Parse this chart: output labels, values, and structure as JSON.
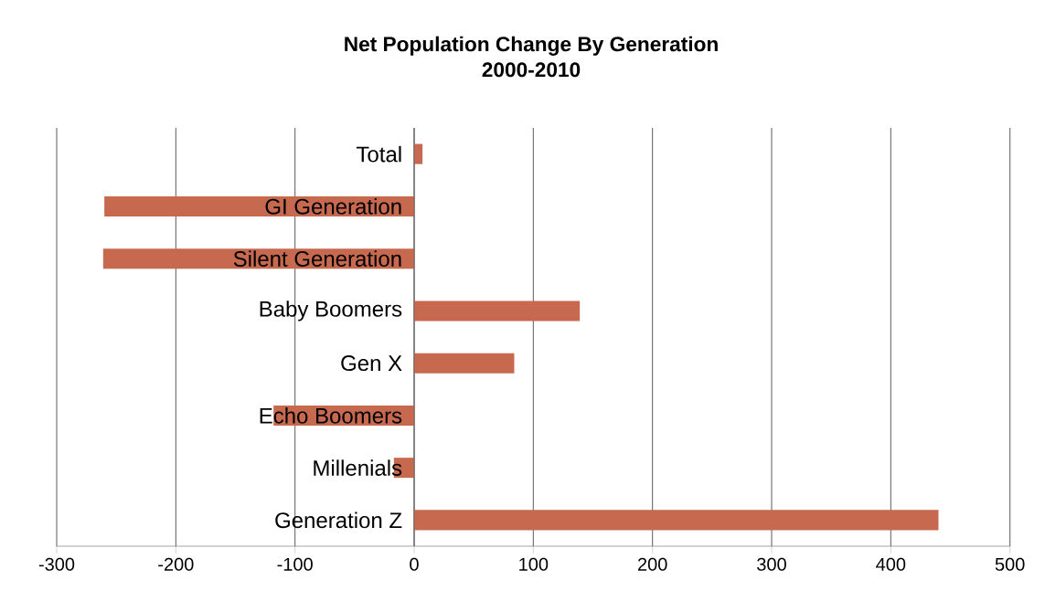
{
  "chart_data": {
    "type": "bar",
    "orientation": "horizontal",
    "title": "Net Population Change By Generation",
    "subtitle": "2000-2010",
    "categories": [
      "Total",
      "GI Generation",
      "Silent Generation",
      "Baby Boomers",
      "Gen X",
      "Echo Boomers",
      "Millenials",
      "Generation Z"
    ],
    "values": [
      7,
      -260,
      -261,
      139,
      84,
      -118,
      -17,
      440
    ],
    "color": "#c6694f",
    "xlim": [
      -300,
      500
    ],
    "xticks": [
      -300,
      -200,
      -100,
      0,
      100,
      200,
      300,
      400,
      500
    ],
    "grid": "x"
  }
}
